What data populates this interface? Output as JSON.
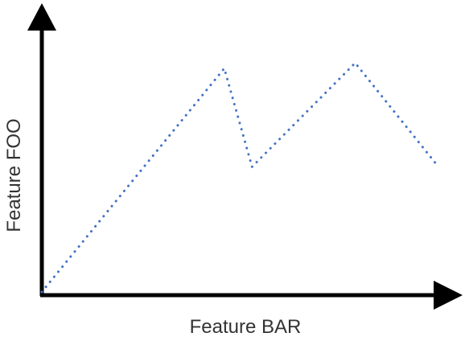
{
  "chart_data": {
    "type": "line",
    "title": "",
    "xlabel": "Feature BAR",
    "ylabel": "Feature FOO",
    "xlim": [
      0,
      1
    ],
    "ylim": [
      0,
      1
    ],
    "grid": false,
    "legend": "none",
    "line_style": "dotted",
    "series": [
      {
        "color": "#4472c4",
        "x": [
          0.0,
          0.46,
          0.53,
          0.79,
          1.0
        ],
        "y": [
          0.0,
          0.84,
          0.47,
          0.86,
          0.47
        ]
      }
    ]
  }
}
